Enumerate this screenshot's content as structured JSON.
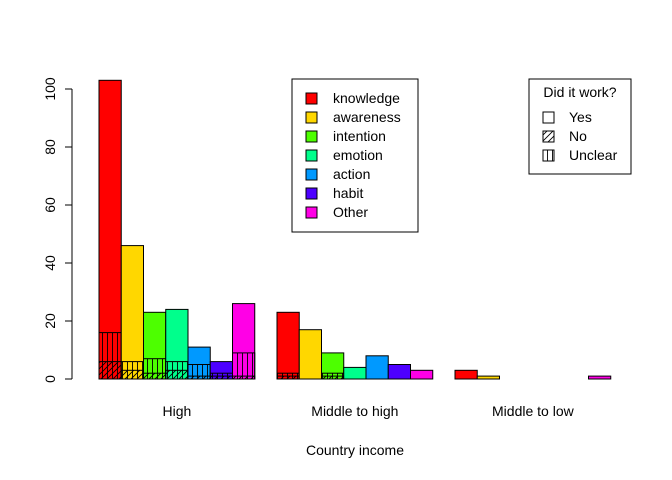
{
  "chart_data": {
    "type": "bar",
    "title": "",
    "xlabel": "Country income",
    "ylabel": "",
    "ylim": [
      0,
      108
    ],
    "yticks": [
      0,
      20,
      40,
      60,
      80,
      100
    ],
    "grid": false,
    "groups": [
      "High",
      "Middle to high",
      "Middle to low"
    ],
    "categories": [
      "knowledge",
      "awareness",
      "intention",
      "emotion",
      "action",
      "habit",
      "Other"
    ],
    "colors": {
      "knowledge": "#FF0000",
      "awareness": "#FFD700",
      "intention": "#4DFF00",
      "emotion": "#00FF8C",
      "action": "#0099FF",
      "habit": "#4D00FF",
      "Other": "#FF00E6"
    },
    "series": [
      {
        "name": "Yes",
        "pattern": "none",
        "values": [
          [
            103,
            46,
            23,
            24,
            11,
            6,
            26
          ],
          [
            23,
            17,
            9,
            4,
            8,
            5,
            3
          ],
          [
            3,
            1,
            0,
            0,
            0,
            0,
            1
          ]
        ]
      },
      {
        "name": "No",
        "pattern": "diagonal",
        "values": [
          [
            6,
            3,
            2,
            3,
            1,
            1,
            1
          ],
          [
            1,
            0,
            1,
            0,
            0,
            0,
            0
          ],
          [
            0,
            0,
            0,
            0,
            0,
            0,
            0
          ]
        ]
      },
      {
        "name": "Unclear",
        "pattern": "vertical",
        "values": [
          [
            16,
            6,
            7,
            6,
            5,
            2,
            9
          ],
          [
            2,
            0,
            2,
            0,
            0,
            0,
            0
          ],
          [
            0,
            0,
            0,
            0,
            0,
            0,
            0
          ]
        ]
      }
    ],
    "legend_categories": {
      "position": "top-center",
      "items": [
        "knowledge",
        "awareness",
        "intention",
        "emotion",
        "action",
        "habit",
        "Other"
      ]
    },
    "legend_outcome": {
      "position": "top-right",
      "title": "Did it work?",
      "items": [
        "Yes",
        "No",
        "Unclear"
      ]
    }
  }
}
